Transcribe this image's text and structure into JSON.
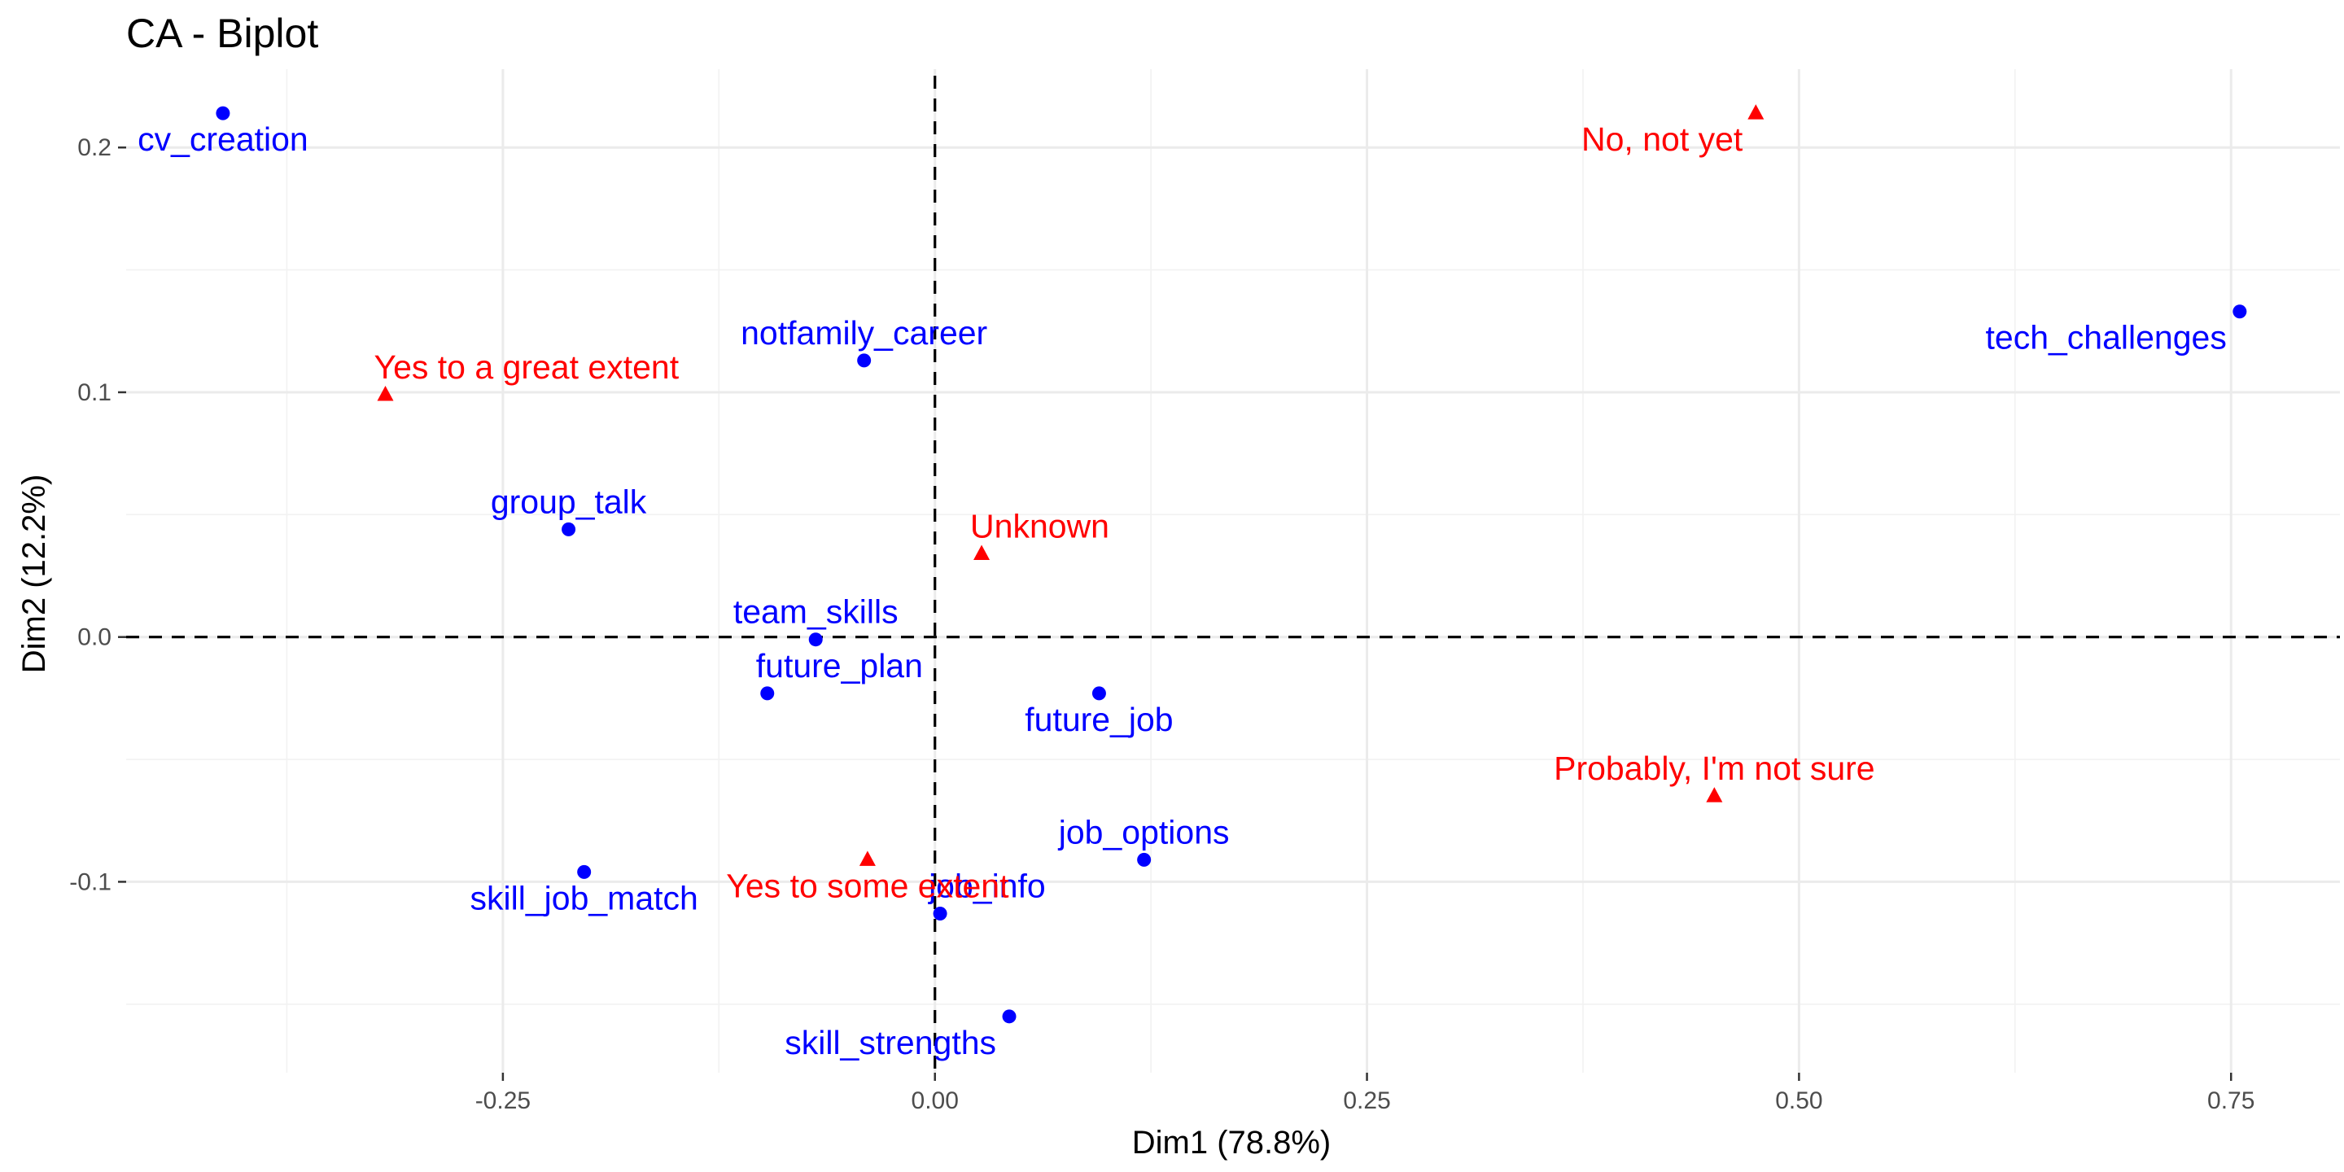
{
  "chart_data": {
    "type": "scatter",
    "title": "CA - Biplot",
    "xlabel": "Dim1 (78.8%)",
    "ylabel": "Dim2 (12.2%)",
    "xlim": [
      -0.468,
      0.813
    ],
    "ylim": [
      -0.178,
      0.232
    ],
    "x_ticks": [
      -0.25,
      0.0,
      0.25,
      0.5,
      0.75
    ],
    "x_tick_labels": [
      "-0.25",
      "0.00",
      "0.25",
      "0.50",
      "0.75"
    ],
    "y_ticks": [
      -0.1,
      0.0,
      0.1,
      0.2
    ],
    "y_tick_labels": [
      "-0.1",
      "0.0",
      "0.1",
      "0.2"
    ],
    "grid": true,
    "reference_lines": {
      "x": 0,
      "y": 0,
      "style": "dashed"
    },
    "series": [
      {
        "color": "#0000FF",
        "marker": "circle",
        "points": [
          {
            "label": "cv_creation",
            "x": -0.412,
            "y": 0.214,
            "label_pos": "below"
          },
          {
            "label": "tech_challenges",
            "x": 0.755,
            "y": 0.133,
            "label_pos": "below-left"
          },
          {
            "label": "notfamily_career",
            "x": -0.041,
            "y": 0.113,
            "label_pos": "above"
          },
          {
            "label": "group_talk",
            "x": -0.212,
            "y": 0.044,
            "label_pos": "above"
          },
          {
            "label": "team_skills",
            "x": -0.069,
            "y": -0.001,
            "label_pos": "above"
          },
          {
            "label": "future_plan",
            "x": -0.097,
            "y": -0.023,
            "label_pos": "above-right"
          },
          {
            "label": "future_job",
            "x": 0.095,
            "y": -0.023,
            "label_pos": "below"
          },
          {
            "label": "job_options",
            "x": 0.121,
            "y": -0.091,
            "label_pos": "above"
          },
          {
            "label": "skill_job_match",
            "x": -0.203,
            "y": -0.096,
            "label_pos": "below"
          },
          {
            "label": "job_info",
            "x": 0.003,
            "y": -0.113,
            "label_pos": "above-right"
          },
          {
            "label": "skill_strengths",
            "x": 0.043,
            "y": -0.155,
            "label_pos": "below-left"
          }
        ]
      },
      {
        "color": "#FF0000",
        "marker": "triangle",
        "points": [
          {
            "label": "No, not yet",
            "x": 0.475,
            "y": 0.214,
            "label_pos": "below-left"
          },
          {
            "label": "Yes to a great extent",
            "x": -0.318,
            "y": 0.099,
            "label_pos": "above-right"
          },
          {
            "label": "Unknown",
            "x": 0.027,
            "y": 0.034,
            "label_pos": "above-right"
          },
          {
            "label": "Probably, I'm not sure",
            "x": 0.451,
            "y": -0.065,
            "label_pos": "above"
          },
          {
            "label": "Yes to some extent",
            "x": -0.039,
            "y": -0.091,
            "label_pos": "below"
          }
        ]
      }
    ]
  }
}
